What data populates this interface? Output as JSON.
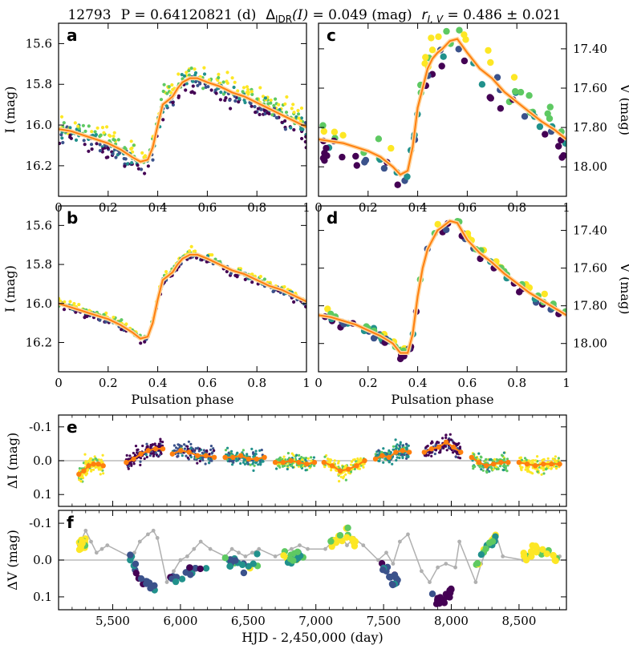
{
  "header": {
    "star_id": "12793",
    "period_text": "P = 0.64120821 (d)",
    "delta_label": "Δ",
    "delta_sub": "IDR",
    "delta_arg": "(I)",
    "delta_value": " = 0.049 (mag)",
    "r_label": "r",
    "r_sub": "I, V",
    "r_value": " = 0.486 ± 0.021"
  },
  "colors": {
    "viridis": [
      "#440154",
      "#3b528b",
      "#21918c",
      "#5ec962",
      "#fde725"
    ],
    "fit_orange": "#ff7f0e",
    "fit_outline": "#ffd59e",
    "zero_line": "#bbbbbb",
    "gray_line": "#b0b0b0"
  },
  "chart_data": [
    {
      "id": "a",
      "type": "scatter",
      "panel_letter": "a",
      "xlabel": "",
      "ylabel": "I (mag)",
      "y_side": "left",
      "xlim": [
        0,
        1
      ],
      "ylim": [
        16.35,
        15.5
      ],
      "invert_y": true,
      "xticks": [
        0,
        0.2,
        0.4,
        0.6,
        0.8,
        1
      ],
      "xtick_labels": [
        "0",
        "0.2",
        "0.4",
        "0.6",
        "0.8",
        "1"
      ],
      "yticks": [
        15.6,
        15.8,
        16.0,
        16.2
      ],
      "ytick_labels": [
        "15.6",
        "15.8",
        "16.0",
        "16.2"
      ],
      "curve": {
        "phase": [
          0,
          0.05,
          0.1,
          0.15,
          0.2,
          0.25,
          0.3,
          0.33,
          0.36,
          0.38,
          0.4,
          0.42,
          0.44,
          0.46,
          0.48,
          0.5,
          0.53,
          0.56,
          0.6,
          0.65,
          0.7,
          0.75,
          0.8,
          0.85,
          0.9,
          0.95,
          1
        ],
        "mag": [
          16.02,
          16.03,
          16.05,
          16.07,
          16.09,
          16.12,
          16.16,
          16.18,
          16.17,
          16.11,
          16.0,
          15.9,
          15.88,
          15.86,
          15.82,
          15.79,
          15.77,
          15.77,
          15.79,
          15.81,
          15.84,
          15.86,
          15.89,
          15.92,
          15.95,
          15.98,
          16.01
        ]
      },
      "scatter_spread": 0.06,
      "scatter_count": 420
    },
    {
      "id": "b",
      "type": "scatter",
      "panel_letter": "b",
      "xlabel": "Pulsation phase",
      "ylabel": "I (mag)",
      "y_side": "left",
      "xlim": [
        0,
        1
      ],
      "ylim": [
        16.35,
        15.5
      ],
      "invert_y": true,
      "xticks": [
        0,
        0.2,
        0.4,
        0.6,
        0.8,
        1
      ],
      "xtick_labels": [
        "0",
        "0.2",
        "0.4",
        "0.6",
        "0.8",
        "1"
      ],
      "yticks": [
        15.6,
        15.8,
        16.0,
        16.2
      ],
      "ytick_labels": [
        "15.6",
        "15.8",
        "16.0",
        "16.2"
      ],
      "curve": {
        "phase": [
          0,
          0.05,
          0.1,
          0.15,
          0.2,
          0.25,
          0.3,
          0.33,
          0.36,
          0.38,
          0.4,
          0.42,
          0.44,
          0.46,
          0.48,
          0.5,
          0.53,
          0.56,
          0.6,
          0.65,
          0.7,
          0.75,
          0.8,
          0.85,
          0.9,
          0.95,
          1
        ],
        "mag": [
          16.0,
          16.02,
          16.04,
          16.06,
          16.08,
          16.11,
          16.15,
          16.18,
          16.17,
          16.1,
          15.98,
          15.88,
          15.86,
          15.84,
          15.8,
          15.77,
          15.75,
          15.75,
          15.77,
          15.8,
          15.83,
          15.85,
          15.88,
          15.91,
          15.93,
          15.96,
          15.99
        ]
      },
      "scatter_spread": 0.02,
      "scatter_count": 380
    },
    {
      "id": "c",
      "type": "scatter",
      "panel_letter": "c",
      "xlabel": "",
      "ylabel": "V (mag)",
      "y_side": "right",
      "xlim": [
        0,
        1
      ],
      "ylim": [
        18.15,
        17.27
      ],
      "invert_y": true,
      "xticks": [
        0,
        0.2,
        0.4,
        0.6,
        0.8,
        1
      ],
      "xtick_labels": [
        "0",
        "0.2",
        "0.4",
        "0.6",
        "0.8",
        "1"
      ],
      "yticks": [
        17.4,
        17.6,
        17.8,
        18.0
      ],
      "ytick_labels": [
        "17.40",
        "17.60",
        "17.80",
        "18.00"
      ],
      "curve": {
        "phase": [
          0,
          0.05,
          0.1,
          0.15,
          0.2,
          0.25,
          0.3,
          0.33,
          0.36,
          0.38,
          0.4,
          0.42,
          0.44,
          0.46,
          0.48,
          0.5,
          0.53,
          0.56,
          0.6,
          0.65,
          0.7,
          0.75,
          0.8,
          0.85,
          0.9,
          0.95,
          1
        ],
        "mag": [
          17.86,
          17.87,
          17.88,
          17.9,
          17.92,
          17.95,
          18.0,
          18.04,
          18.02,
          17.9,
          17.7,
          17.6,
          17.5,
          17.45,
          17.42,
          17.4,
          17.36,
          17.35,
          17.42,
          17.5,
          17.55,
          17.62,
          17.67,
          17.72,
          17.77,
          17.81,
          17.86
        ]
      },
      "scatter_spread": 0.1,
      "scatter_count": 90
    },
    {
      "id": "d",
      "type": "scatter",
      "panel_letter": "d",
      "xlabel": "Pulsation phase",
      "ylabel": "V (mag)",
      "y_side": "right",
      "xlim": [
        0,
        1
      ],
      "ylim": [
        18.15,
        17.27
      ],
      "invert_y": true,
      "xticks": [
        0,
        0.2,
        0.4,
        0.6,
        0.8,
        1
      ],
      "xtick_labels": [
        "0",
        "0.2",
        "0.4",
        "0.6",
        "0.8",
        "1"
      ],
      "yticks": [
        17.4,
        17.6,
        17.8,
        18.0
      ],
      "ytick_labels": [
        "17.40",
        "17.60",
        "17.80",
        "18.00"
      ],
      "curve": {
        "phase": [
          0,
          0.05,
          0.1,
          0.15,
          0.2,
          0.25,
          0.3,
          0.33,
          0.36,
          0.38,
          0.4,
          0.42,
          0.44,
          0.46,
          0.48,
          0.5,
          0.53,
          0.56,
          0.6,
          0.65,
          0.7,
          0.75,
          0.8,
          0.85,
          0.9,
          0.95,
          1
        ],
        "mag": [
          17.85,
          17.86,
          17.88,
          17.9,
          17.93,
          17.96,
          18.0,
          18.05,
          18.05,
          17.95,
          17.75,
          17.6,
          17.5,
          17.45,
          17.4,
          17.38,
          17.35,
          17.36,
          17.45,
          17.52,
          17.57,
          17.63,
          17.68,
          17.73,
          17.77,
          17.81,
          17.85
        ]
      },
      "scatter_spread": 0.03,
      "scatter_count": 90
    },
    {
      "id": "e",
      "type": "scatter",
      "panel_letter": "e",
      "xlabel": "",
      "ylabel": "ΔI (mag)",
      "y_side": "left",
      "xlim": [
        5100,
        8850
      ],
      "ylim": [
        0.135,
        -0.135
      ],
      "invert_y": true,
      "xticks": [
        5500,
        6000,
        6500,
        7000,
        7500,
        8000,
        8500
      ],
      "xtick_labels": [
        "",
        "",
        "",
        "",
        "",
        "",
        ""
      ],
      "yticks": [
        -0.1,
        0.0,
        0.1
      ],
      "ytick_labels": [
        "-0.1",
        "0.0",
        "0.1"
      ],
      "seasons": [
        {
          "start": 5250,
          "end": 5430,
          "offset": [
            0.04,
            0.03,
            0.015,
            0.01,
            0.01,
            0.015
          ]
        },
        {
          "start": 5600,
          "end": 5870,
          "offset": [
            0.005,
            -0.005,
            -0.02,
            -0.03,
            -0.035,
            -0.035
          ]
        },
        {
          "start": 5940,
          "end": 6250,
          "offset": [
            -0.02,
            -0.03,
            -0.025,
            -0.015,
            -0.015,
            -0.01
          ]
        },
        {
          "start": 6330,
          "end": 6620,
          "offset": [
            -0.01,
            -0.01,
            -0.015,
            -0.005,
            -0.005,
            -0.01
          ]
        },
        {
          "start": 6700,
          "end": 6990,
          "offset": [
            0.005,
            0.005,
            0.0,
            0.005,
            0.01,
            0.005
          ]
        },
        {
          "start": 7060,
          "end": 7360,
          "offset": [
            0.005,
            0.015,
            0.03,
            0.025,
            0.015,
            0.0
          ]
        },
        {
          "start": 7440,
          "end": 7690,
          "offset": [
            -0.005,
            -0.015,
            -0.01,
            -0.025,
            -0.03,
            -0.025
          ]
        },
        {
          "start": 7800,
          "end": 8070,
          "offset": [
            -0.025,
            -0.035,
            -0.04,
            -0.055,
            -0.04,
            -0.025
          ]
        },
        {
          "start": 8150,
          "end": 8420,
          "offset": [
            -0.01,
            0.005,
            0.015,
            0.01,
            0.005,
            0.005
          ]
        },
        {
          "start": 8500,
          "end": 8800,
          "offset": [
            0.005,
            0.01,
            0.015,
            0.01,
            0.01,
            0.01
          ]
        }
      ],
      "season_colors": [
        4,
        0,
        1,
        2,
        3,
        4,
        2,
        0,
        3,
        4
      ],
      "scatter_spread": 0.022,
      "points_per_season": 140
    },
    {
      "id": "f",
      "type": "scatter",
      "panel_letter": "f",
      "xlabel": "HJD - 2,450,000 (day)",
      "ylabel": "ΔV (mag)",
      "y_side": "left",
      "xlim": [
        5100,
        8850
      ],
      "ylim": [
        0.135,
        -0.135
      ],
      "invert_y": true,
      "xticks": [
        5500,
        6000,
        6500,
        7000,
        7500,
        8000,
        8500
      ],
      "xtick_labels": [
        "5,500",
        "6,000",
        "6,500",
        "7,000",
        "7,500",
        "8,000",
        "8,500"
      ],
      "yticks": [
        -0.1,
        0.0,
        0.1
      ],
      "ytick_labels": [
        "-0.1",
        "0.0",
        "0.1"
      ],
      "gray_path": {
        "x": [
          5250,
          5300,
          5340,
          5380,
          5420,
          5460,
          5620,
          5660,
          5700,
          5760,
          5800,
          5830,
          5900,
          5950,
          6000,
          6050,
          6100,
          6150,
          6220,
          6330,
          6380,
          6430,
          6480,
          6530,
          6580,
          6700,
          6760,
          6820,
          6880,
          6940,
          7070,
          7120,
          7180,
          7230,
          7280,
          7350,
          7460,
          7520,
          7570,
          7620,
          7680,
          7780,
          7840,
          7900,
          7960,
          8030,
          8060,
          8180,
          8220,
          8280,
          8330,
          8380,
          8530,
          8580,
          8650,
          8720,
          8800
        ],
        "y": [
          -0.04,
          -0.08,
          -0.05,
          -0.02,
          -0.03,
          -0.04,
          -0.01,
          -0.02,
          -0.05,
          -0.07,
          -0.08,
          -0.06,
          0.06,
          0.03,
          0.0,
          -0.01,
          -0.03,
          -0.05,
          -0.03,
          -0.01,
          -0.03,
          -0.02,
          -0.01,
          -0.02,
          -0.03,
          -0.01,
          -0.02,
          -0.03,
          -0.04,
          -0.03,
          -0.03,
          -0.05,
          -0.07,
          -0.04,
          -0.06,
          -0.04,
          0.0,
          -0.02,
          0.01,
          -0.05,
          -0.07,
          0.03,
          0.06,
          0.02,
          0.01,
          0.02,
          -0.05,
          0.06,
          0.01,
          -0.05,
          -0.07,
          -0.01,
          0.0,
          -0.01,
          -0.03,
          -0.02,
          -0.01
        ]
      },
      "seasons": [
        {
          "start": 5250,
          "end": 5300,
          "offset": [
            -0.04,
            -0.05
          ]
        },
        {
          "start": 5620,
          "end": 5830,
          "offset": [
            -0.02,
            0.03,
            0.06,
            0.07,
            0.08
          ]
        },
        {
          "start": 5920,
          "end": 6220,
          "offset": [
            0.06,
            0.04,
            0.03,
            0.02,
            0.01
          ]
        },
        {
          "start": 6330,
          "end": 6590,
          "offset": [
            0.0,
            0.01,
            0.02,
            0.01,
            0.0
          ]
        },
        {
          "start": 6750,
          "end": 6940,
          "offset": [
            -0.01,
            0.0,
            -0.01,
            0.0
          ]
        },
        {
          "start": 7100,
          "end": 7300,
          "offset": [
            -0.03,
            -0.06,
            -0.07,
            -0.05
          ]
        },
        {
          "start": 7480,
          "end": 7620,
          "offset": [
            0.01,
            0.03,
            0.06,
            0.05
          ]
        },
        {
          "start": 7850,
          "end": 8000,
          "offset": [
            0.1,
            0.11,
            0.1,
            0.09
          ]
        },
        {
          "start": 8180,
          "end": 8330,
          "offset": [
            0.02,
            -0.02,
            -0.04,
            -0.06
          ]
        },
        {
          "start": 8530,
          "end": 8780,
          "offset": [
            -0.01,
            -0.02,
            -0.03,
            -0.01,
            0.0
          ]
        }
      ],
      "season_colors": [
        4,
        1,
        1,
        2,
        3,
        4,
        1,
        0,
        3,
        4
      ],
      "scatter_spread": 0.018,
      "points_per_season": 18
    }
  ]
}
